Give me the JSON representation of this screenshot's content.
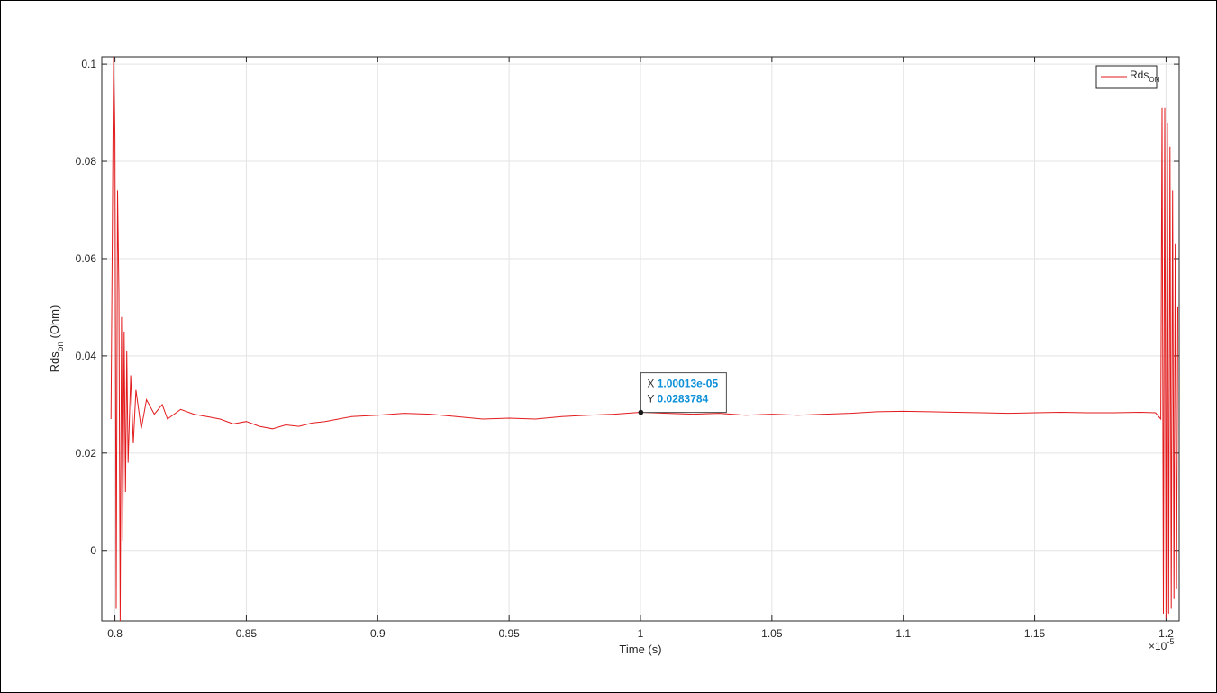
{
  "chart_data": {
    "type": "line",
    "xlabel": "Time (s)",
    "ylabel": {
      "main": "Rds",
      "sub": "on",
      "unit": " (Ohm)"
    },
    "x_exponent_label": {
      "base": "×10",
      "exp": "-5"
    },
    "xlim": [
      0.795,
      1.205
    ],
    "ylim": [
      -0.0145,
      0.1015
    ],
    "x_ticks": [
      0.8,
      0.85,
      0.9,
      0.95,
      1,
      1.05,
      1.1,
      1.15,
      1.2
    ],
    "x_tick_labels": [
      "0.8",
      "0.85",
      "0.9",
      "0.95",
      "1",
      "1.05",
      "1.1",
      "1.15",
      "1.2"
    ],
    "y_ticks": [
      0,
      0.02,
      0.04,
      0.06,
      0.08,
      0.1
    ],
    "y_tick_labels": [
      "0",
      "0.02",
      "0.04",
      "0.06",
      "0.08",
      "0.1"
    ],
    "grid": true,
    "legend": {
      "position": "top-right",
      "entries": [
        {
          "name": "Rds",
          "sub": "ON"
        }
      ]
    },
    "series": [
      {
        "name": "Rds_ON",
        "color": "#e31a1c",
        "x": [
          0.7985,
          0.7995,
          0.8,
          0.8005,
          0.801,
          0.8015,
          0.802,
          0.8025,
          0.803,
          0.8035,
          0.804,
          0.8045,
          0.805,
          0.806,
          0.807,
          0.808,
          0.81,
          0.812,
          0.815,
          0.818,
          0.82,
          0.825,
          0.83,
          0.835,
          0.84,
          0.845,
          0.85,
          0.855,
          0.86,
          0.865,
          0.87,
          0.875,
          0.88,
          0.885,
          0.89,
          0.9,
          0.91,
          0.92,
          0.93,
          0.94,
          0.95,
          0.96,
          0.97,
          0.98,
          0.99,
          1.0,
          1.01,
          1.02,
          1.03,
          1.04,
          1.05,
          1.06,
          1.07,
          1.08,
          1.09,
          1.1,
          1.11,
          1.12,
          1.13,
          1.14,
          1.15,
          1.16,
          1.17,
          1.18,
          1.19,
          1.196,
          1.198,
          1.1985,
          1.199,
          1.1995,
          1.2,
          1.2005,
          1.201,
          1.2015,
          1.202,
          1.2025,
          1.203,
          1.2035,
          1.204,
          1.2045
        ],
        "y": [
          0.027,
          0.102,
          0.085,
          -0.012,
          0.074,
          0.053,
          -0.015,
          0.048,
          0.002,
          0.045,
          0.012,
          0.041,
          0.018,
          0.036,
          0.022,
          0.033,
          0.025,
          0.031,
          0.028,
          0.03,
          0.027,
          0.029,
          0.028,
          0.0275,
          0.027,
          0.026,
          0.0265,
          0.0255,
          0.025,
          0.0258,
          0.0255,
          0.0262,
          0.0265,
          0.027,
          0.0275,
          0.0278,
          0.0282,
          0.028,
          0.0275,
          0.027,
          0.0272,
          0.027,
          0.0275,
          0.0278,
          0.028,
          0.0284,
          0.0282,
          0.028,
          0.0282,
          0.0278,
          0.028,
          0.0278,
          0.028,
          0.0282,
          0.0285,
          0.0286,
          0.0285,
          0.0284,
          0.0283,
          0.0282,
          0.0283,
          0.0284,
          0.0283,
          0.0283,
          0.0284,
          0.0283,
          0.027,
          0.091,
          -0.013,
          0.091,
          -0.014,
          0.088,
          -0.013,
          0.083,
          -0.012,
          0.074,
          -0.01,
          0.063,
          -0.008,
          0.05
        ]
      }
    ],
    "data_tip": {
      "x_prefix": "X",
      "x_value": "1.00013e-05",
      "y_prefix": "Y",
      "y_value": "0.0283784",
      "x": 1.00013,
      "y": 0.0283784
    }
  }
}
